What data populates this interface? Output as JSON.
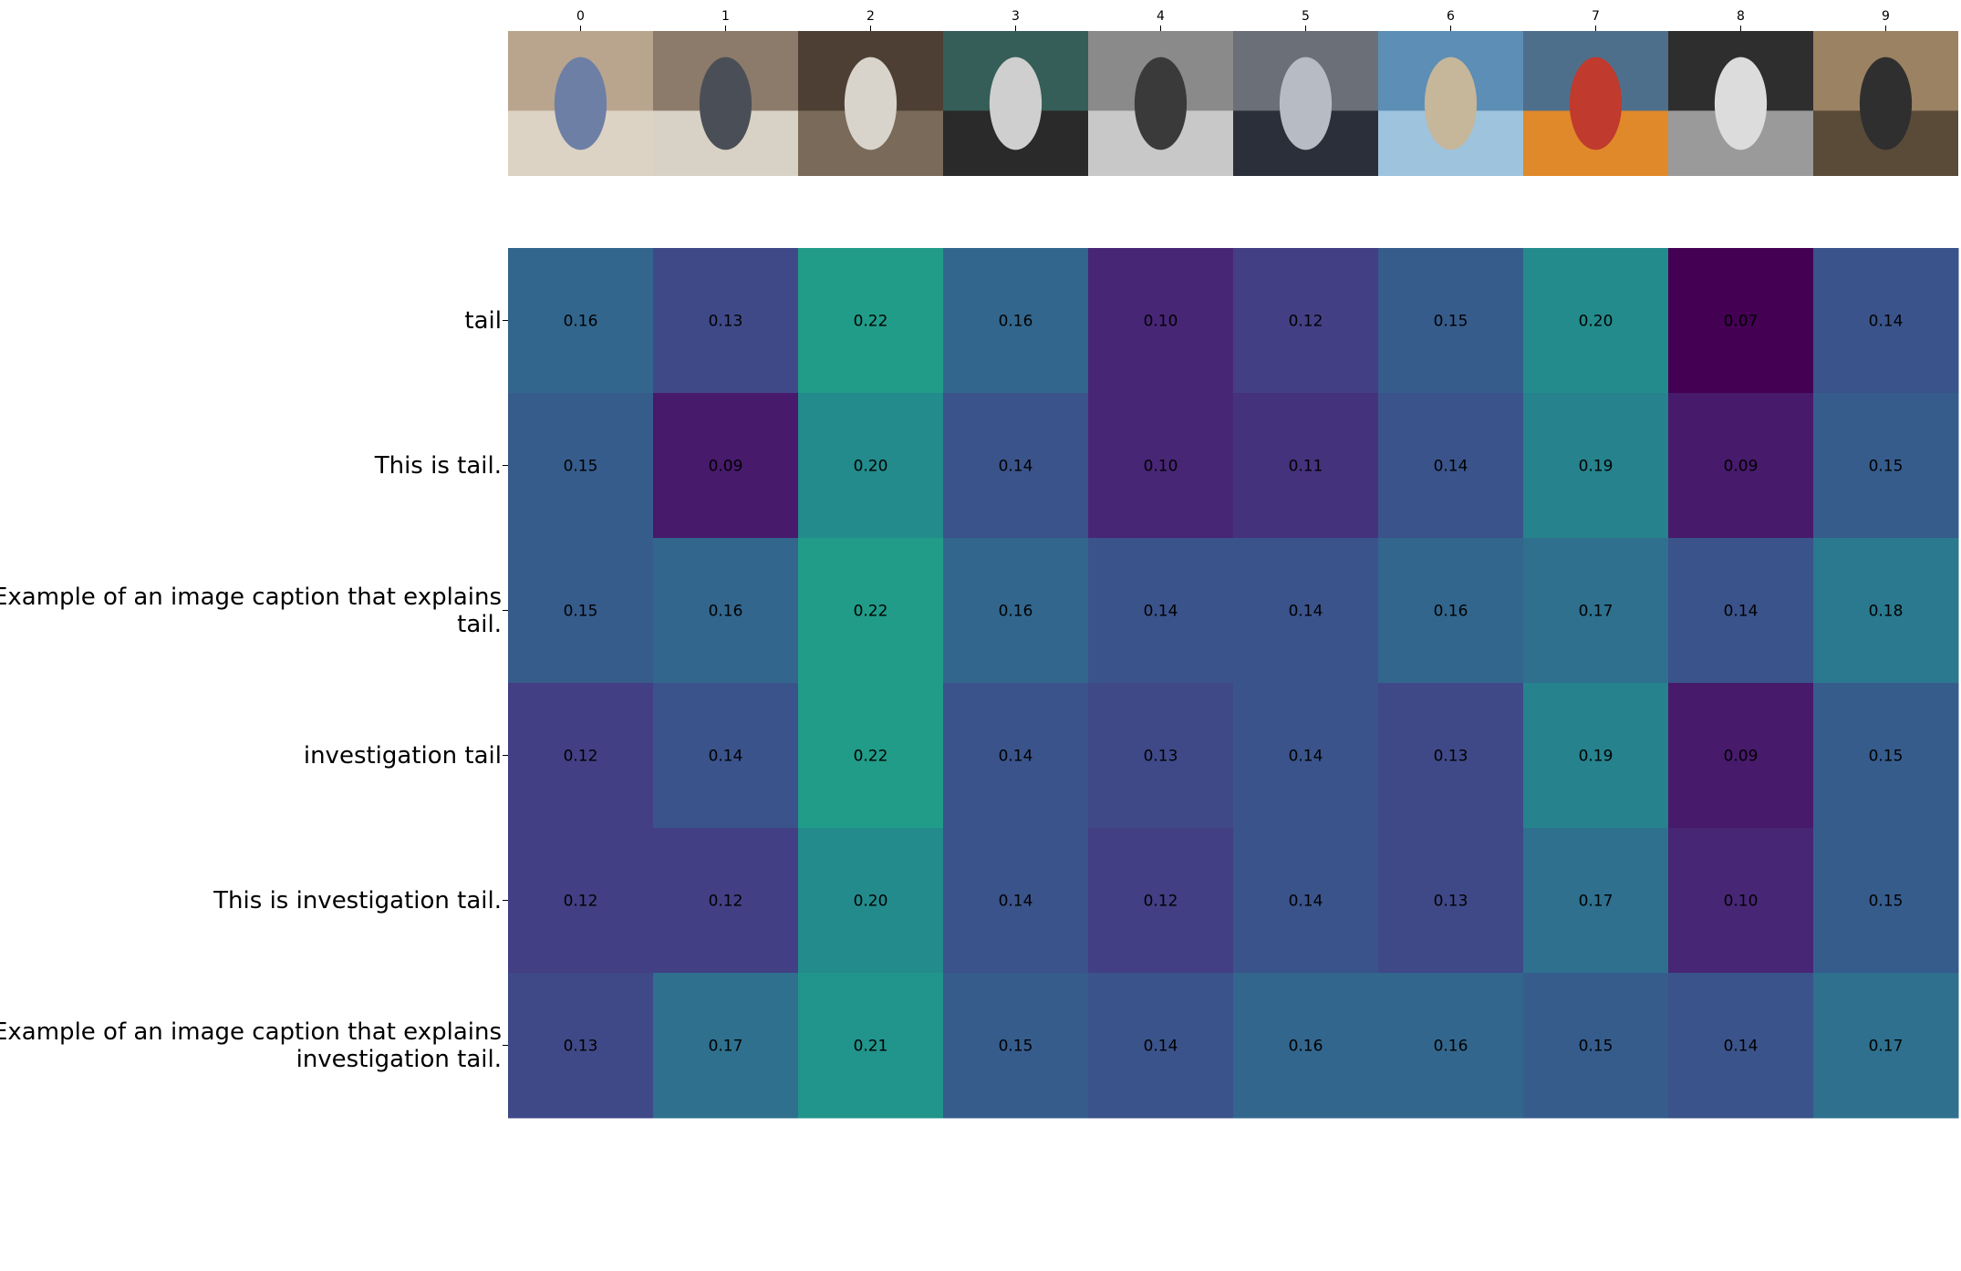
{
  "chart_data": {
    "type": "heatmap",
    "colormap": "viridis",
    "columns": [
      "0",
      "1",
      "2",
      "3",
      "4",
      "5",
      "6",
      "7",
      "8",
      "9"
    ],
    "column_images": [
      "people-by-convertible-car",
      "people-at-table-meeting",
      "white-animal-on-dirt",
      "baseball-pitcher",
      "black-white-street-crowd",
      "police-officer-with-person",
      "man-holding-fish-on-boat",
      "costumed-mascots",
      "black-white-couple-film-still",
      "man-aiming-rifle"
    ],
    "rows": [
      "tail",
      "This is tail.",
      "Example of an image caption that explains\ntail.",
      "investigation tail",
      "This is investigation tail.",
      "Example of an image caption that explains\ninvestigation tail."
    ],
    "values": [
      [
        0.16,
        0.13,
        0.22,
        0.16,
        0.1,
        0.12,
        0.15,
        0.2,
        0.07,
        0.14
      ],
      [
        0.15,
        0.09,
        0.2,
        0.14,
        0.1,
        0.11,
        0.14,
        0.19,
        0.09,
        0.15
      ],
      [
        0.15,
        0.16,
        0.22,
        0.16,
        0.14,
        0.14,
        0.16,
        0.17,
        0.14,
        0.18
      ],
      [
        0.12,
        0.14,
        0.22,
        0.14,
        0.13,
        0.14,
        0.13,
        0.19,
        0.09,
        0.15
      ],
      [
        0.12,
        0.12,
        0.2,
        0.14,
        0.12,
        0.14,
        0.13,
        0.17,
        0.1,
        0.15
      ],
      [
        0.13,
        0.17,
        0.21,
        0.15,
        0.14,
        0.16,
        0.16,
        0.15,
        0.14,
        0.17
      ]
    ],
    "value_format": "0.00"
  }
}
